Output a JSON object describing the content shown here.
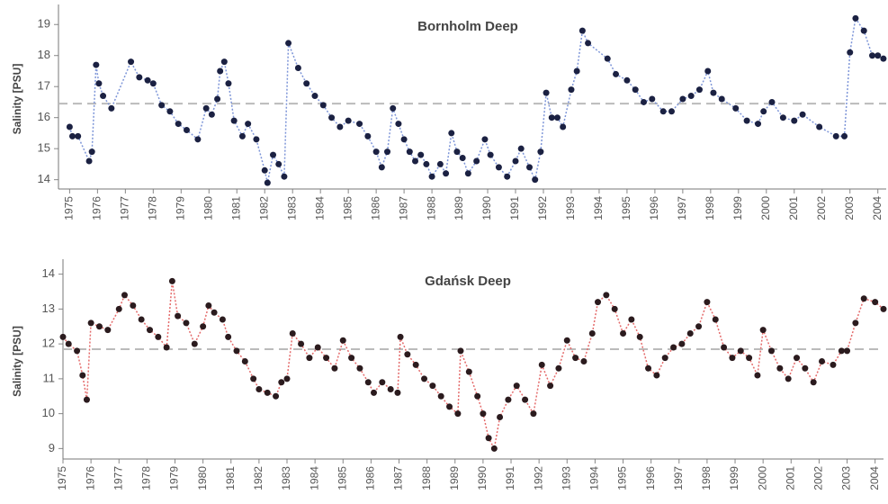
{
  "chart_data": [
    {
      "type": "line",
      "title": "Bornholm Deep",
      "y_label": "Salinity [PSU]",
      "x": [
        1975.0,
        1975.1,
        1975.3,
        1975.7,
        1975.8,
        1975.95,
        1976.05,
        1976.2,
        1976.5,
        1977.2,
        1977.5,
        1977.8,
        1978.0,
        1978.3,
        1978.6,
        1978.9,
        1979.2,
        1979.6,
        1979.9,
        1980.1,
        1980.3,
        1980.4,
        1980.55,
        1980.7,
        1980.9,
        1981.2,
        1981.4,
        1981.7,
        1982.0,
        1982.1,
        1982.3,
        1982.5,
        1982.7,
        1982.85,
        1983.2,
        1983.5,
        1983.8,
        1984.1,
        1984.4,
        1984.7,
        1985.0,
        1985.4,
        1985.7,
        1986.0,
        1986.2,
        1986.4,
        1986.6,
        1986.8,
        1987.0,
        1987.2,
        1987.4,
        1987.6,
        1987.8,
        1988.0,
        1988.3,
        1988.5,
        1988.7,
        1988.9,
        1989.1,
        1989.3,
        1989.6,
        1989.9,
        1990.1,
        1990.4,
        1990.7,
        1991.0,
        1991.2,
        1991.5,
        1991.7,
        1991.9,
        1992.1,
        1992.3,
        1992.5,
        1992.7,
        1993.0,
        1993.2,
        1993.4,
        1993.6,
        1994.3,
        1994.6,
        1995.0,
        1995.3,
        1995.6,
        1995.9,
        1996.3,
        1996.6,
        1997.0,
        1997.3,
        1997.6,
        1997.9,
        1998.1,
        1998.4,
        1998.9,
        1999.3,
        1999.7,
        1999.9,
        2000.2,
        2000.6,
        2001.0,
        2001.3,
        2001.9,
        2002.5,
        2002.8,
        2003.0,
        2003.2,
        2003.5,
        2003.8,
        2004.0,
        2004.2
      ],
      "values": [
        15.7,
        15.4,
        15.4,
        14.6,
        14.9,
        17.7,
        17.1,
        16.7,
        16.3,
        17.8,
        17.3,
        17.2,
        17.1,
        16.4,
        16.2,
        15.8,
        15.6,
        15.3,
        16.3,
        16.1,
        16.6,
        17.5,
        17.8,
        17.1,
        15.9,
        15.4,
        15.8,
        15.3,
        14.3,
        13.9,
        14.8,
        14.5,
        14.1,
        18.4,
        17.6,
        17.1,
        16.7,
        16.4,
        16.0,
        15.7,
        15.9,
        15.8,
        15.4,
        14.9,
        14.4,
        14.9,
        16.3,
        15.8,
        15.3,
        14.9,
        14.6,
        14.8,
        14.5,
        14.1,
        14.5,
        14.2,
        15.5,
        14.9,
        14.7,
        14.2,
        14.6,
        15.3,
        14.8,
        14.4,
        14.1,
        14.6,
        15.0,
        14.4,
        14.0,
        14.9,
        16.8,
        16.0,
        16.0,
        15.7,
        16.9,
        17.5,
        18.8,
        18.4,
        17.9,
        17.4,
        17.2,
        16.9,
        16.5,
        16.6,
        16.2,
        16.2,
        16.6,
        16.7,
        16.9,
        17.5,
        16.8,
        16.6,
        16.3,
        15.9,
        15.8,
        16.2,
        16.5,
        16.0,
        15.9,
        16.1,
        15.7,
        15.4,
        15.4,
        18.1,
        19.2,
        18.8,
        18.0,
        18.0,
        17.9
      ],
      "line_color": "#7d95d8",
      "color": "#1b2142",
      "reference_line": 16.45,
      "xlim": [
        1974.6,
        2004.3
      ],
      "ylim": [
        13.7,
        19.5
      ],
      "xticks": [
        1975,
        1976,
        1977,
        1978,
        1979,
        1980,
        1981,
        1982,
        1983,
        1984,
        1985,
        1986,
        1987,
        1988,
        1989,
        1990,
        1991,
        1992,
        1993,
        1994,
        1995,
        1996,
        1997,
        1998,
        1999,
        2000,
        2001,
        2002,
        2003,
        2004
      ],
      "yticks": [
        14,
        15,
        16,
        17,
        18,
        19
      ]
    },
    {
      "type": "line",
      "title": "Gdańsk Deep",
      "y_label": "Salinity [PSU]",
      "x": [
        1975.0,
        1975.2,
        1975.5,
        1975.7,
        1975.85,
        1976.0,
        1976.3,
        1976.6,
        1977.0,
        1977.2,
        1977.5,
        1977.8,
        1978.1,
        1978.4,
        1978.7,
        1978.9,
        1979.1,
        1979.4,
        1979.7,
        1980.0,
        1980.2,
        1980.4,
        1980.7,
        1980.9,
        1981.2,
        1981.5,
        1981.8,
        1982.0,
        1982.3,
        1982.6,
        1982.8,
        1983.0,
        1983.2,
        1983.5,
        1983.8,
        1984.1,
        1984.4,
        1984.7,
        1985.0,
        1985.3,
        1985.6,
        1985.9,
        1986.1,
        1986.4,
        1986.7,
        1986.95,
        1987.05,
        1987.3,
        1987.6,
        1987.9,
        1988.2,
        1988.5,
        1988.8,
        1989.1,
        1989.2,
        1989.5,
        1989.8,
        1990.0,
        1990.2,
        1990.4,
        1990.6,
        1990.9,
        1991.2,
        1991.5,
        1991.8,
        1992.1,
        1992.4,
        1992.7,
        1993.0,
        1993.3,
        1993.6,
        1993.9,
        1994.1,
        1994.4,
        1994.7,
        1995.0,
        1995.3,
        1995.6,
        1995.9,
        1996.2,
        1996.5,
        1996.8,
        1997.1,
        1997.4,
        1997.7,
        1998.0,
        1998.3,
        1998.6,
        1998.9,
        1999.2,
        1999.5,
        1999.8,
        2000.0,
        2000.3,
        2000.6,
        2000.9,
        2001.2,
        2001.5,
        2001.8,
        2002.1,
        2002.5,
        2002.8,
        2003.0,
        2003.3,
        2003.6,
        2004.0,
        2004.3
      ],
      "values": [
        12.2,
        12.0,
        11.8,
        11.1,
        10.4,
        12.6,
        12.5,
        12.4,
        13.0,
        13.4,
        13.1,
        12.7,
        12.4,
        12.2,
        11.9,
        13.8,
        12.8,
        12.6,
        12.0,
        12.5,
        13.1,
        12.9,
        12.7,
        12.2,
        11.8,
        11.5,
        11.0,
        10.7,
        10.6,
        10.5,
        10.9,
        11.0,
        12.3,
        12.0,
        11.6,
        11.9,
        11.6,
        11.3,
        12.1,
        11.6,
        11.3,
        10.9,
        10.6,
        10.9,
        10.7,
        10.6,
        12.2,
        11.7,
        11.4,
        11.0,
        10.8,
        10.5,
        10.2,
        10.0,
        11.8,
        11.2,
        10.5,
        10.0,
        9.3,
        9.0,
        9.9,
        10.4,
        10.8,
        10.4,
        10.0,
        11.4,
        10.8,
        11.3,
        12.1,
        11.6,
        11.5,
        12.3,
        13.2,
        13.4,
        13.0,
        12.3,
        12.7,
        12.2,
        11.3,
        11.1,
        11.6,
        11.9,
        12.0,
        12.3,
        12.5,
        13.2,
        12.7,
        11.9,
        11.6,
        11.8,
        11.6,
        11.1,
        12.4,
        11.8,
        11.3,
        11.0,
        11.6,
        11.3,
        10.9,
        11.5,
        11.4,
        11.8,
        11.8,
        12.6,
        13.3,
        13.2,
        13.0
      ],
      "line_color": "#e46a6a",
      "color": "#2b1b1e",
      "reference_line": 11.85,
      "xlim": [
        1975.0,
        2004.3
      ],
      "ylim": [
        8.7,
        14.3
      ],
      "xticks": [
        1975,
        1976,
        1977,
        1978,
        1979,
        1980,
        1981,
        1982,
        1983,
        1984,
        1985,
        1986,
        1987,
        1988,
        1989,
        1990,
        1991,
        1992,
        1993,
        1994,
        1995,
        1996,
        1997,
        1998,
        1999,
        2000,
        2001,
        2002,
        2003,
        2004
      ],
      "yticks": [
        9,
        10,
        11,
        12,
        13,
        14
      ]
    }
  ]
}
